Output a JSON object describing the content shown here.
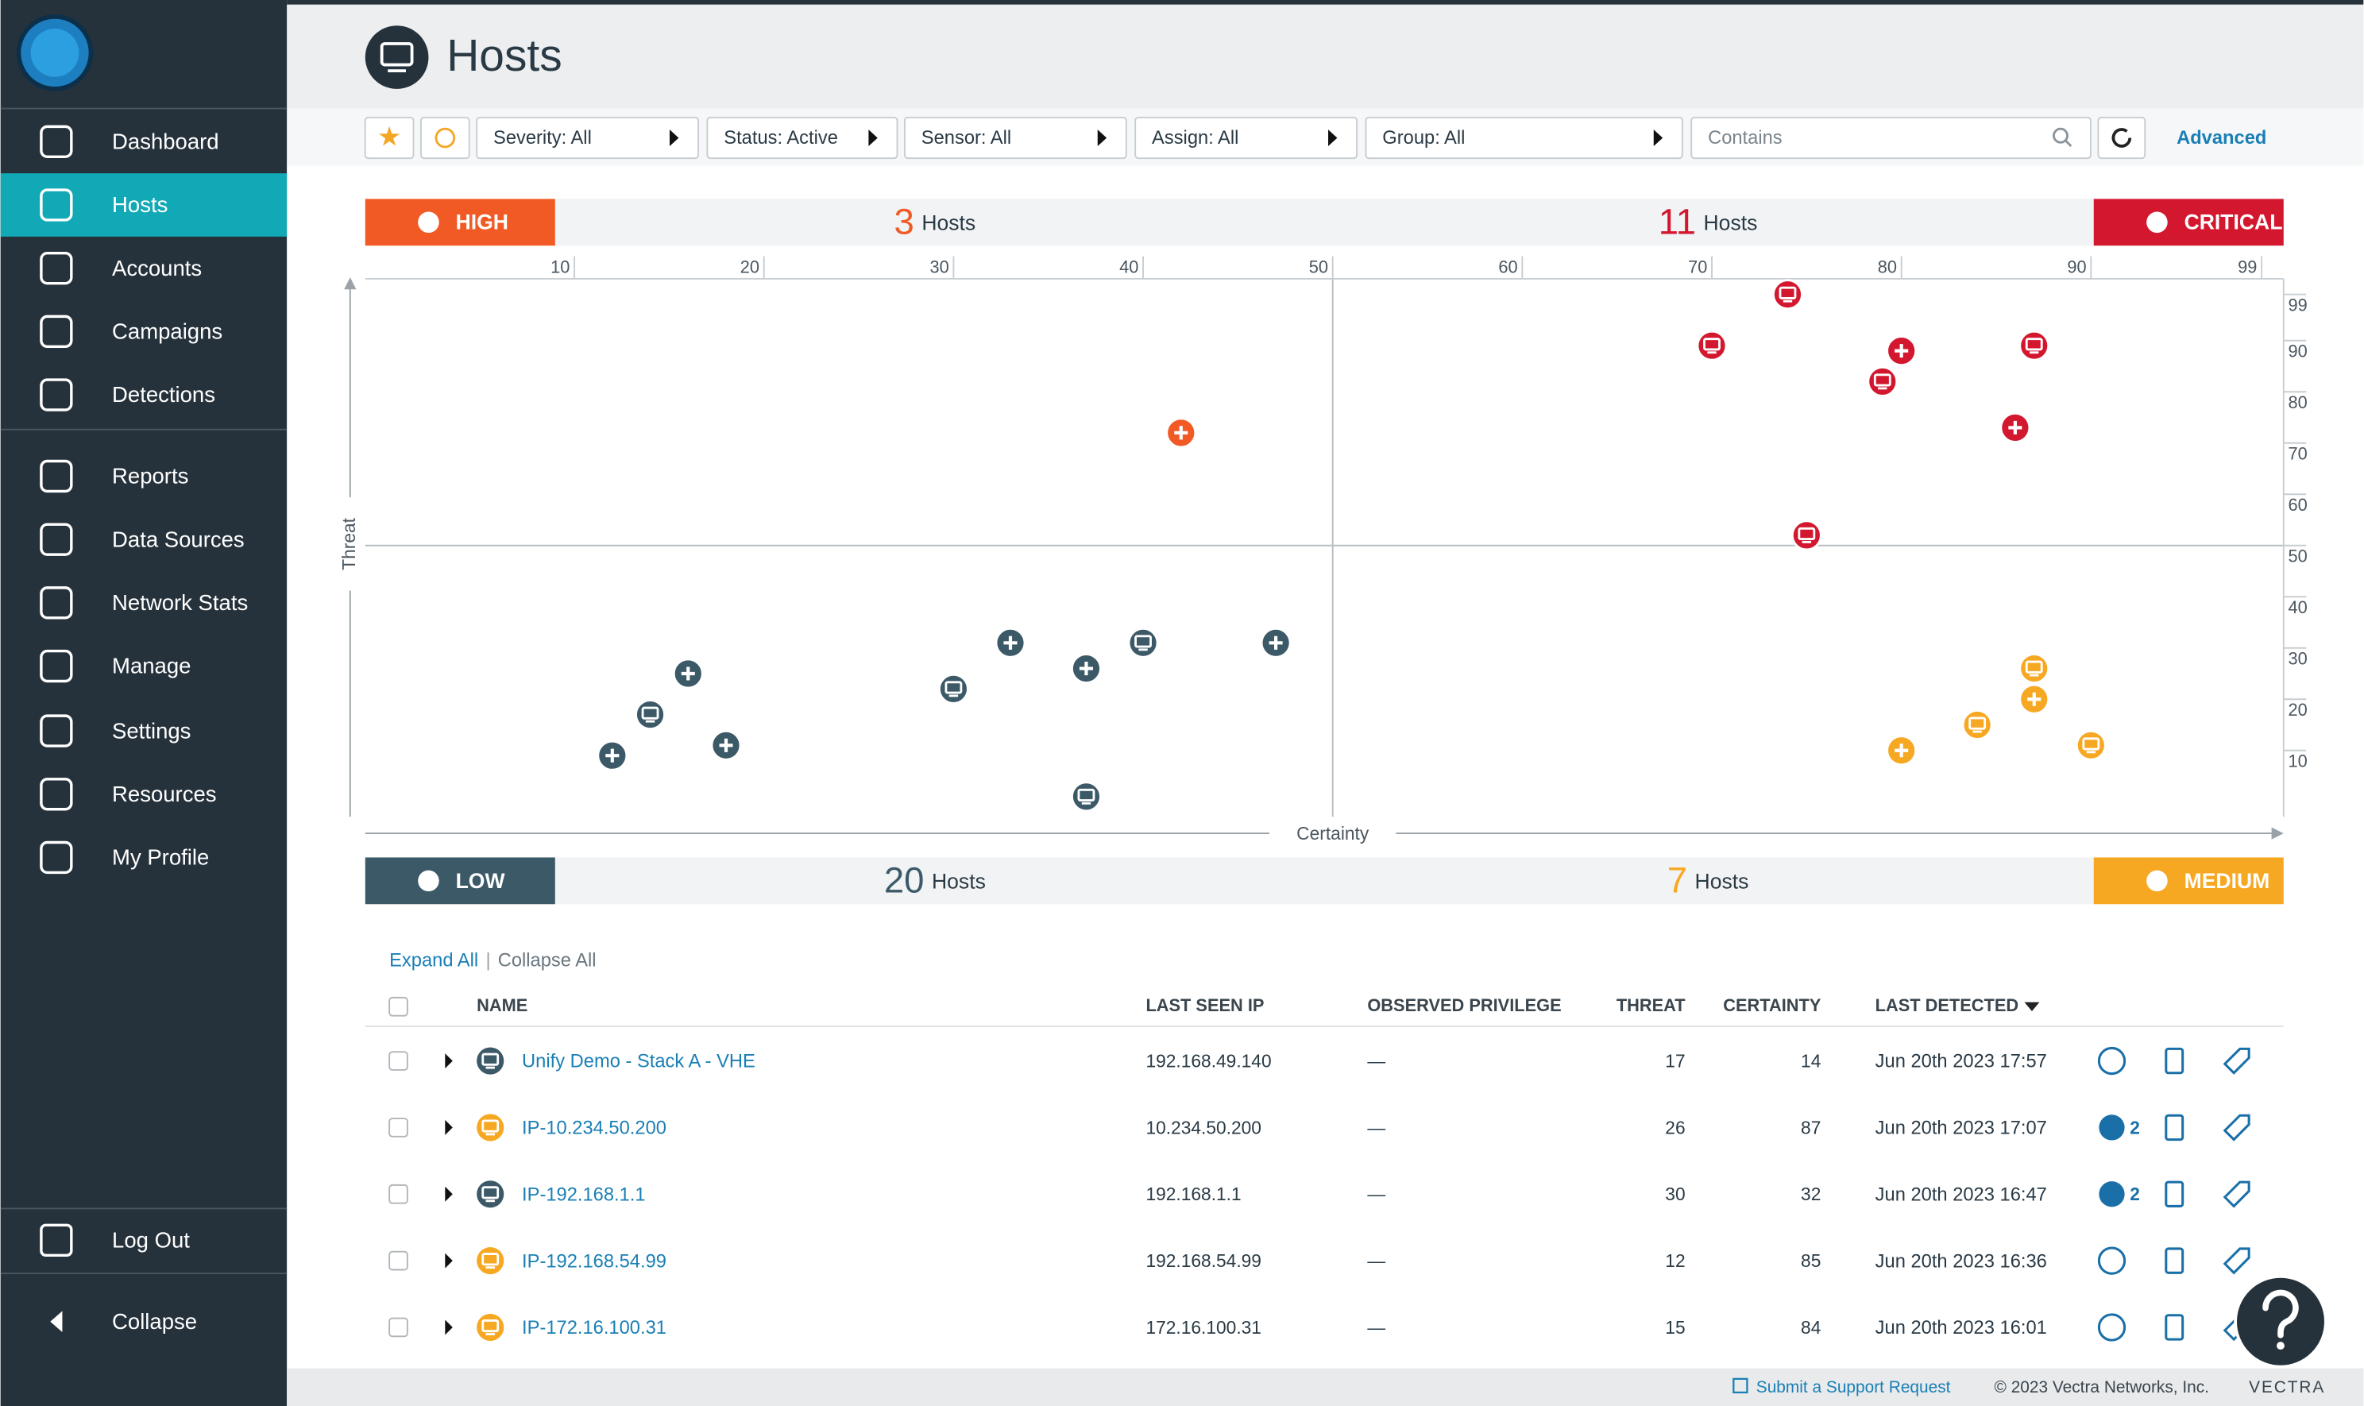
{
  "sidebar": {
    "items": [
      "Dashboard",
      "Hosts",
      "Accounts",
      "Campaigns",
      "Detections",
      "Reports",
      "Data Sources",
      "Network Stats",
      "Manage",
      "Settings",
      "Resources",
      "My Profile"
    ],
    "active": 1,
    "bottom_items": [
      "Log Out",
      "Collapse"
    ]
  },
  "header": {
    "title": "Hosts"
  },
  "filters": {
    "dropdowns": [
      "Severity: All",
      "Status: Active",
      "Sensor: All",
      "Assign: All",
      "Group: All"
    ],
    "search_placeholder": "Contains",
    "advanced": "Advanced"
  },
  "chart_data": {
    "type": "scatter",
    "x_label": "Certainty",
    "y_label": "Threat",
    "count_unit": "Hosts",
    "xlim": [
      0,
      100
    ],
    "ylim": [
      0,
      100
    ],
    "xticks": [
      10,
      20,
      30,
      40,
      50,
      60,
      70,
      80,
      90,
      99
    ],
    "yticks": [
      10,
      20,
      30,
      40,
      50,
      60,
      70,
      80,
      90,
      99
    ],
    "series": [
      {
        "name": "HIGH",
        "corner": "top-left",
        "color": "#f15a24",
        "count": 3,
        "x": [
          42
        ],
        "values": [
          72
        ],
        "symbols": [
          "plus"
        ]
      },
      {
        "name": "CRITICAL",
        "corner": "top-right",
        "color": "#d3172e",
        "count": 11,
        "x": [
          74,
          70,
          80,
          87,
          79,
          86,
          75
        ],
        "values": [
          99,
          89,
          88,
          89,
          82,
          73,
          52
        ],
        "symbols": [
          "host",
          "host",
          "plus",
          "host",
          "host",
          "plus",
          "host"
        ]
      },
      {
        "name": "LOW",
        "corner": "bottom-left",
        "color": "#3c5968",
        "count": 20,
        "x": [
          16,
          14,
          12,
          18,
          30,
          33,
          37,
          40,
          47,
          37
        ],
        "values": [
          25,
          17,
          9,
          11,
          22,
          31,
          26,
          31,
          31,
          1
        ],
        "symbols": [
          "plus",
          "host",
          "plus",
          "plus",
          "host",
          "plus",
          "plus",
          "host",
          "plus",
          "host"
        ]
      },
      {
        "name": "MEDIUM",
        "corner": "bottom-right",
        "color": "#f7a823",
        "count": 7,
        "x": [
          87,
          87,
          84,
          90,
          80
        ],
        "values": [
          26,
          20,
          15,
          11,
          10
        ],
        "symbols": [
          "host",
          "plus",
          "host",
          "host",
          "plus"
        ]
      }
    ]
  },
  "table": {
    "links": [
      "Expand All",
      "Collapse All"
    ],
    "columns": [
      "NAME",
      "LAST SEEN IP",
      "OBSERVED PRIVILEGE",
      "THREAT",
      "CERTAINTY",
      "LAST DETECTED"
    ],
    "rows": [
      {
        "name": "Unify Demo - Stack A - VHE",
        "ip": "192.168.49.140",
        "privilege": "—",
        "threat": 17,
        "certainty": 14,
        "detected": "Jun 20th 2023 17:57",
        "color": "#3c5968"
      },
      {
        "name": "IP-10.234.50.200",
        "ip": "10.234.50.200",
        "privilege": "—",
        "threat": 26,
        "certainty": 87,
        "detected": "Jun 20th 2023 17:07",
        "color": "#f7a823",
        "accounts": 2
      },
      {
        "name": "IP-192.168.1.1",
        "ip": "192.168.1.1",
        "privilege": "—",
        "threat": 30,
        "certainty": 32,
        "detected": "Jun 20th 2023 16:47",
        "color": "#3c5968",
        "accounts": 2
      },
      {
        "name": "IP-192.168.54.99",
        "ip": "192.168.54.99",
        "privilege": "—",
        "threat": 12,
        "certainty": 85,
        "detected": "Jun 20th 2023 16:36",
        "color": "#f7a823"
      },
      {
        "name": "IP-172.16.100.31",
        "ip": "172.16.100.31",
        "privilege": "—",
        "threat": 15,
        "certainty": 84,
        "detected": "Jun 20th 2023 16:01",
        "color": "#f7a823"
      }
    ]
  },
  "footer": {
    "support": "Submit a Support Request",
    "copyright": "© 2023 Vectra Networks, Inc.",
    "brand": "VECTRA"
  }
}
